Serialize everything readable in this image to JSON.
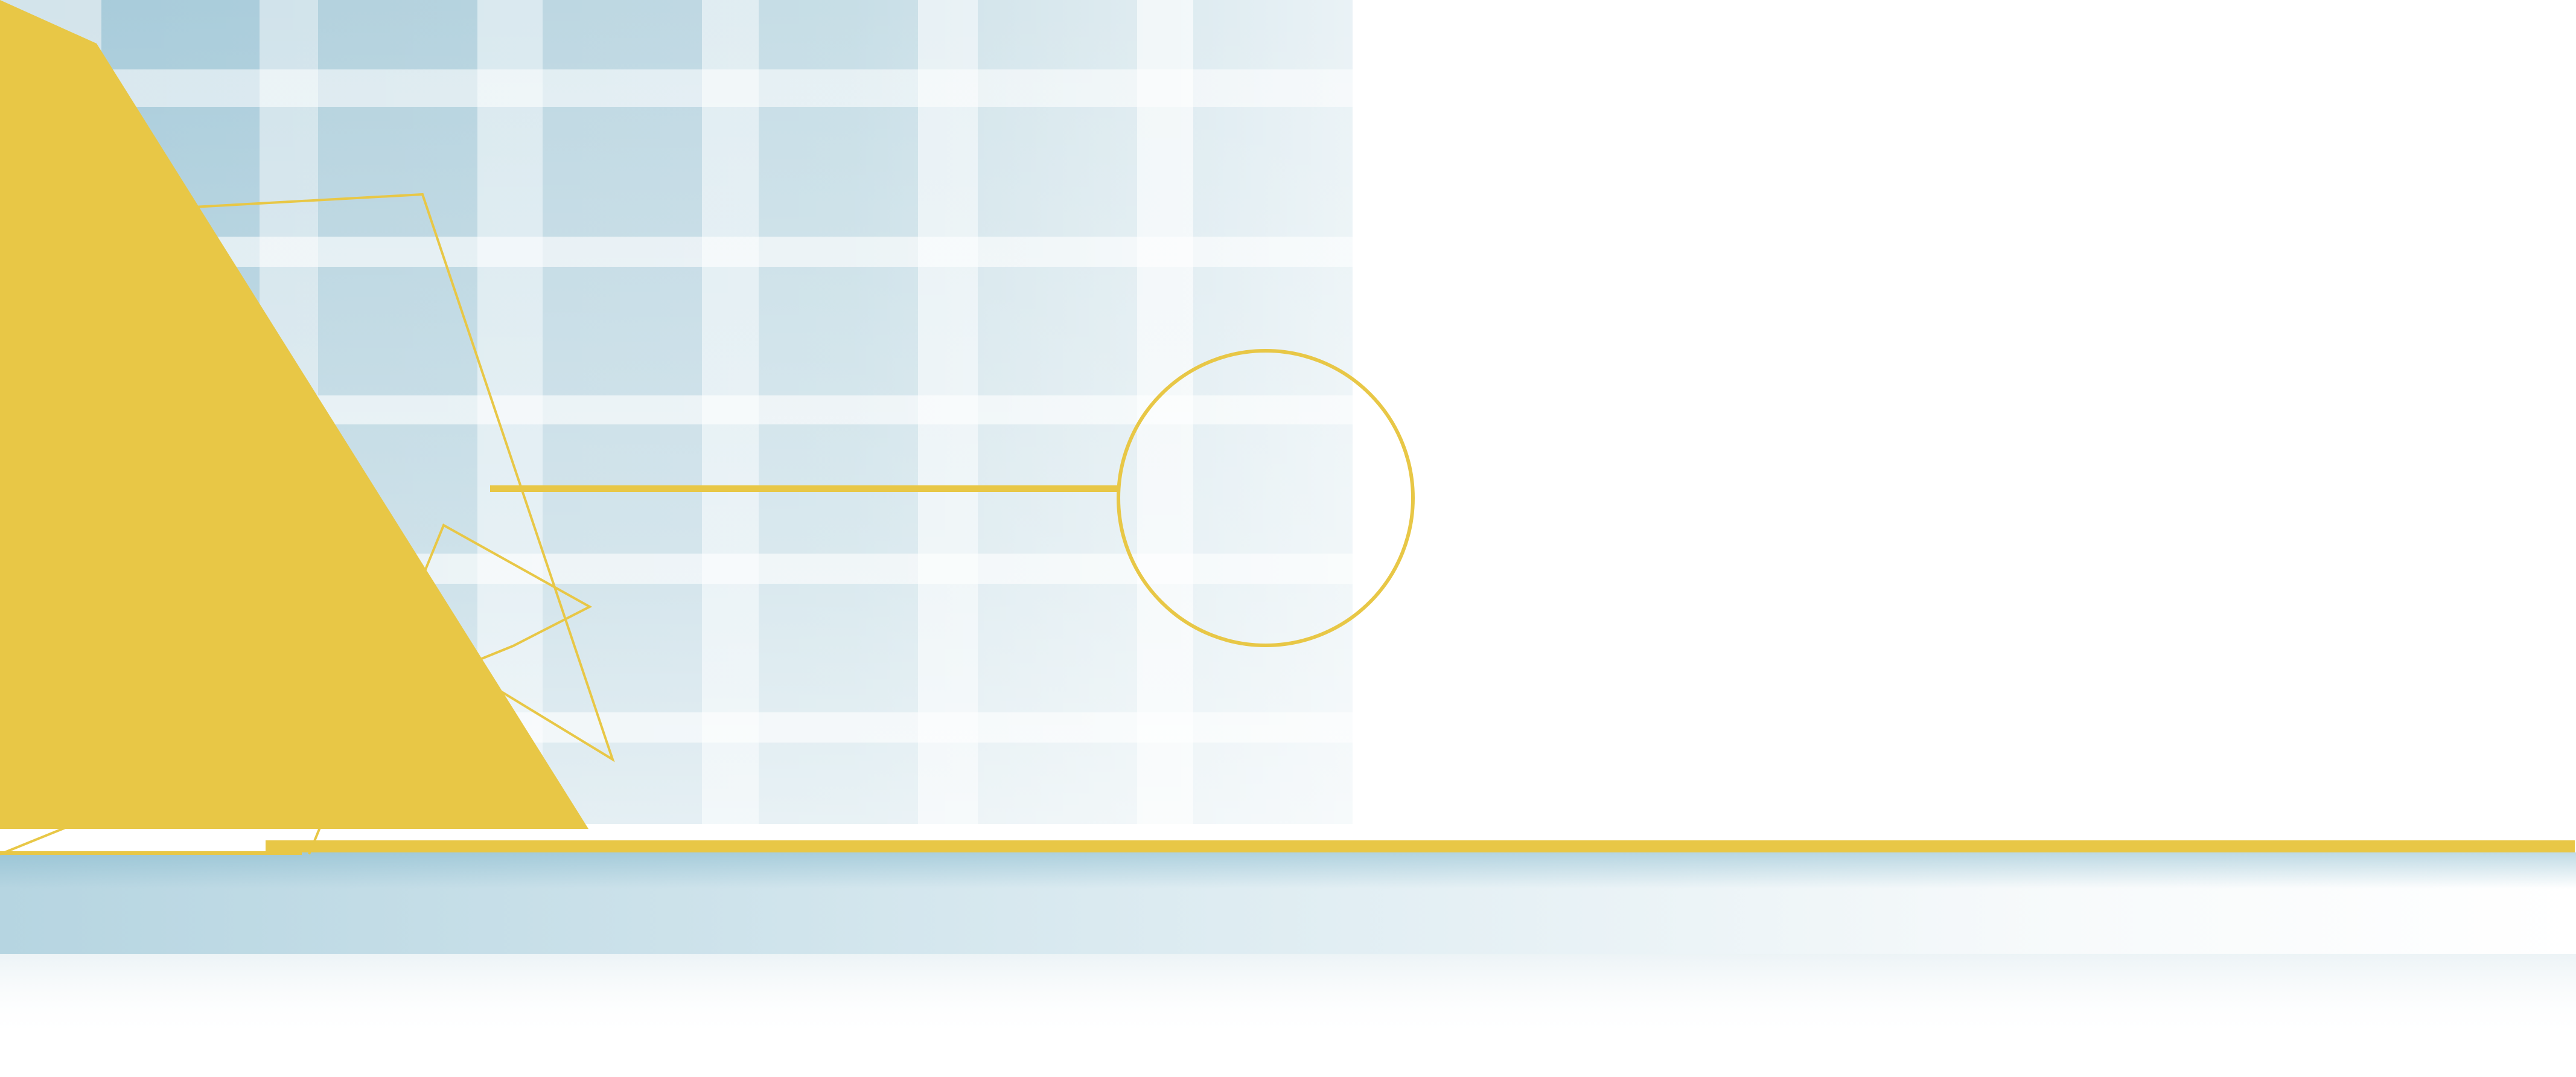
{
  "palette": {
    "accent_yellow": "#E8C746",
    "grid_blue_dark": "#9DC5D6",
    "grid_blue_light": "#D7E7EE",
    "background": "#FFFFFF"
  },
  "texts": {},
  "graphic": {
    "shapes": [
      "grid-background",
      "yellow-triangle",
      "outline-triangle",
      "outline-arrow",
      "outline-circle",
      "yellow-bar",
      "bottom-band"
    ]
  }
}
